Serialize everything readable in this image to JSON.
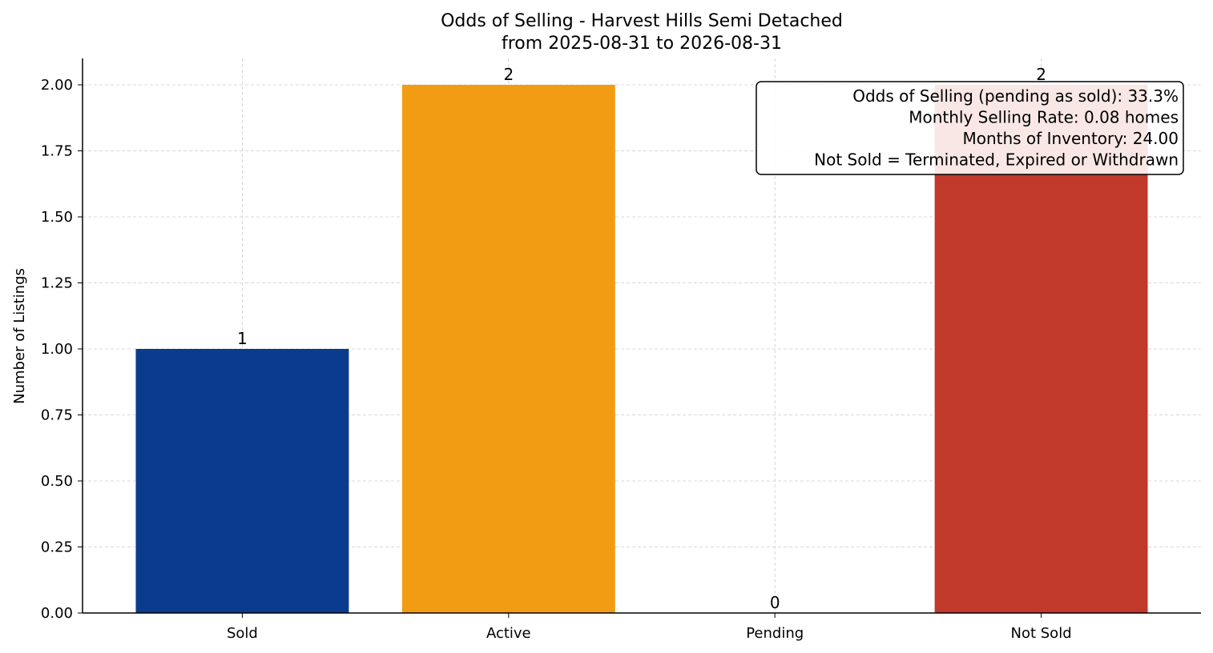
{
  "chart_data": {
    "type": "bar",
    "title": "Odds of Selling - Harvest Hills Semi Detached",
    "subtitle": "from 2025-08-31 to 2026-08-31",
    "xlabel": "",
    "ylabel": "Number of Listings",
    "categories": [
      "Sold",
      "Active",
      "Pending",
      "Not Sold"
    ],
    "values": [
      1,
      2,
      0,
      2
    ],
    "value_labels": [
      "1",
      "2",
      "0",
      "2"
    ],
    "colors": [
      "#0b3b8c",
      "#f29c13",
      "#8aa0a6",
      "#c0392b"
    ],
    "ylim": [
      0,
      2.1
    ],
    "yticks": [
      0,
      0.25,
      0.5,
      0.75,
      1.0,
      1.25,
      1.5,
      1.75,
      2.0
    ],
    "ytick_labels": [
      "0.00",
      "0.25",
      "0.50",
      "0.75",
      "1.00",
      "1.25",
      "1.50",
      "1.75",
      "2.00"
    ],
    "grid": true,
    "annotation_box": {
      "placement": "top-right",
      "lines": [
        "Odds of Selling (pending as sold): 33.3%",
        "Monthly Selling Rate: 0.08 homes",
        "Months of Inventory: 24.00",
        "Not Sold = Terminated, Expired or Withdrawn"
      ]
    }
  }
}
